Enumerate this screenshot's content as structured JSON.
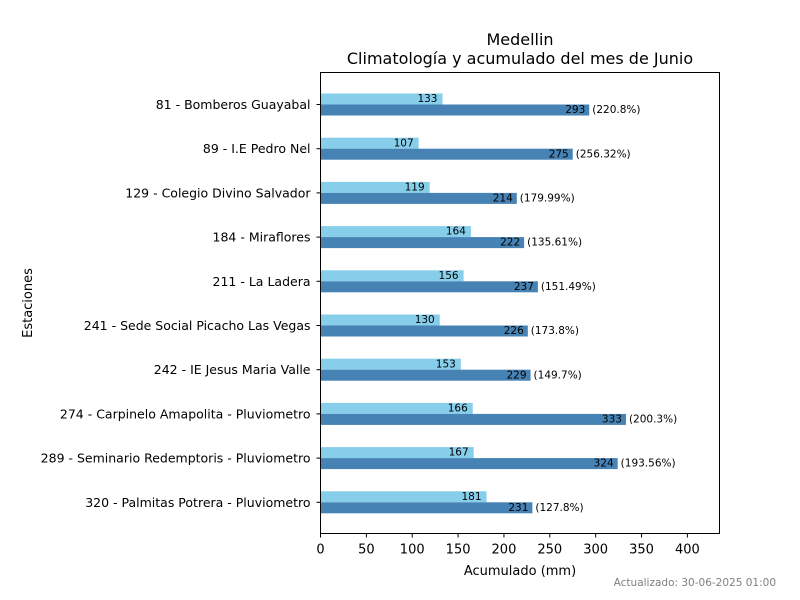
{
  "chart_data": {
    "type": "bar",
    "orientation": "horizontal",
    "title": [
      "Medellin",
      "Climatología y acumulado del mes de Junio"
    ],
    "xlabel": "Acumulado (mm)",
    "ylabel": "Estaciones",
    "xlim": [
      0,
      435
    ],
    "xticks": [
      0,
      50,
      100,
      150,
      200,
      250,
      300,
      350,
      400
    ],
    "grid": false,
    "colors": {
      "climatologia": "#87CEEB",
      "acumulado": "#4682B4"
    },
    "categories": [
      "81 - Bomberos Guayabal",
      "89 - I.E Pedro Nel",
      "129 - Colegio Divino Salvador",
      "184 - Miraflores",
      "211 - La Ladera",
      "241 - Sede Social Picacho Las Vegas",
      "242 - IE Jesus Maria Valle",
      "274 - Carpinelo Amapolita - Pluviometro",
      "289 - Seminario Redemptoris - Pluviometro",
      "320 - Palmitas Potrera - Pluviometro"
    ],
    "series": [
      {
        "key": "climatologia",
        "values": [
          133,
          107,
          119,
          164,
          156,
          130,
          153,
          166,
          167,
          181
        ]
      },
      {
        "key": "acumulado",
        "values": [
          293,
          275,
          214,
          222,
          237,
          226,
          229,
          333,
          324,
          231
        ]
      }
    ],
    "percent_labels": [
      "(220.8%)",
      "(256.32%)",
      "(179.99%)",
      "(135.61%)",
      "(151.49%)",
      "(173.8%)",
      "(149.7%)",
      "(200.3%)",
      "(193.56%)",
      "(127.8%)"
    ]
  },
  "footer": {
    "updated": "Actualizado: 30-06-2025 01:00"
  }
}
